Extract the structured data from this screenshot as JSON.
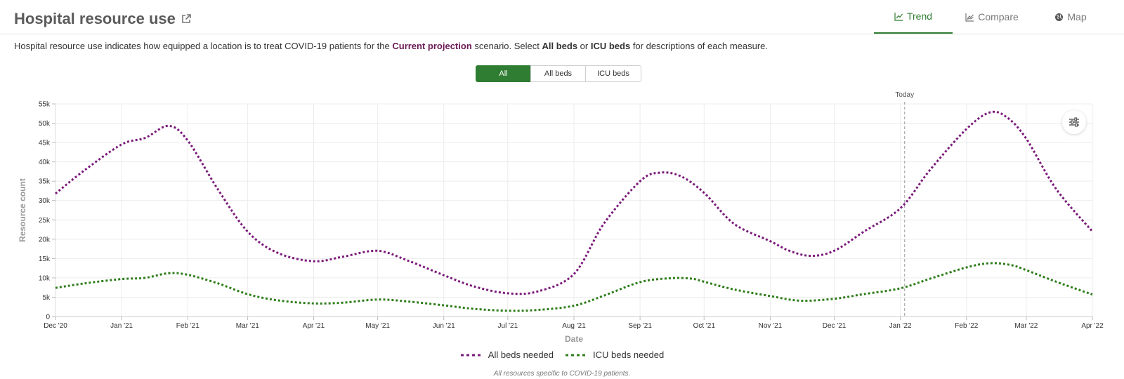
{
  "header": {
    "title": "Hospital resource use",
    "tabs": [
      {
        "label": "Trend",
        "icon": "line-chart-icon",
        "active": true
      },
      {
        "label": "Compare",
        "icon": "compare-chart-icon",
        "active": false
      },
      {
        "label": "Map",
        "icon": "globe-icon",
        "active": false
      }
    ]
  },
  "description": {
    "part1": "Hospital resource use indicates how equipped a location is to treat COVID-19 patients for the ",
    "scenario": "Current projection",
    "part2": " scenario. Select ",
    "all_beds": "All beds",
    "part3": " or ",
    "icu_beds": "ICU beds",
    "part4": " for descriptions of each measure."
  },
  "filters": [
    "All",
    "All beds",
    "ICU beds"
  ],
  "colors": {
    "accent": "#2f7d32",
    "all_beds": "#7a1a7a",
    "icu_beds": "#2e7d1a",
    "scenario": "#6b1a55"
  },
  "settings_icon": "sliders-icon",
  "footnote": "All resources specific to COVID-19 patients.",
  "chart_data": {
    "type": "line",
    "x_ticks": [
      "Dec '20",
      "Jan '21",
      "Feb '21",
      "Mar '21",
      "Apr '21",
      "May '21",
      "Jun '21",
      "Jul '21",
      "Aug '21",
      "Sep '21",
      "Oct '21",
      "Nov '21",
      "Dec '21",
      "Jan '22",
      "Feb '22",
      "Mar '22",
      "Apr '22"
    ],
    "y_ticks": [
      "0",
      "5k",
      "10k",
      "15k",
      "20k",
      "25k",
      "30k",
      "35k",
      "40k",
      "45k",
      "50k",
      "55k"
    ],
    "xlabel": "Date",
    "ylabel": "Resource count",
    "ylim": [
      0,
      55000
    ],
    "xlim": [
      "2020-12-01",
      "2022-04-01"
    ],
    "today_label": "Today",
    "today_date": "2022-01-03",
    "series": [
      {
        "name": "All beds needed",
        "color": "#7a1a7a",
        "points": [
          [
            "2020-12-01",
            31800
          ],
          [
            "2020-12-15",
            38000
          ],
          [
            "2021-01-01",
            44500
          ],
          [
            "2021-01-12",
            46200
          ],
          [
            "2021-01-23",
            49300
          ],
          [
            "2021-02-01",
            45500
          ],
          [
            "2021-02-15",
            33000
          ],
          [
            "2021-03-01",
            22000
          ],
          [
            "2021-03-15",
            16500
          ],
          [
            "2021-04-01",
            14300
          ],
          [
            "2021-04-15",
            15500
          ],
          [
            "2021-05-01",
            17000
          ],
          [
            "2021-05-15",
            14500
          ],
          [
            "2021-06-01",
            10700
          ],
          [
            "2021-06-15",
            7800
          ],
          [
            "2021-07-01",
            6000
          ],
          [
            "2021-07-15",
            6500
          ],
          [
            "2021-08-01",
            11000
          ],
          [
            "2021-08-15",
            24000
          ],
          [
            "2021-09-01",
            35000
          ],
          [
            "2021-09-10",
            37200
          ],
          [
            "2021-09-20",
            36300
          ],
          [
            "2021-10-01",
            32000
          ],
          [
            "2021-10-15",
            24000
          ],
          [
            "2021-11-01",
            19500
          ],
          [
            "2021-11-10",
            17000
          ],
          [
            "2021-11-20",
            15700
          ],
          [
            "2021-12-01",
            17000
          ],
          [
            "2021-12-15",
            22000
          ],
          [
            "2022-01-01",
            28000
          ],
          [
            "2022-01-15",
            38000
          ],
          [
            "2022-02-01",
            48500
          ],
          [
            "2022-02-12",
            52800
          ],
          [
            "2022-02-20",
            51500
          ],
          [
            "2022-03-01",
            46000
          ],
          [
            "2022-03-15",
            33000
          ],
          [
            "2022-04-01",
            22000
          ]
        ]
      },
      {
        "name": "ICU beds needed",
        "color": "#2e7d1a",
        "points": [
          [
            "2020-12-01",
            7400
          ],
          [
            "2020-12-15",
            8600
          ],
          [
            "2021-01-01",
            9700
          ],
          [
            "2021-01-12",
            10000
          ],
          [
            "2021-01-23",
            11200
          ],
          [
            "2021-02-01",
            10800
          ],
          [
            "2021-02-15",
            8600
          ],
          [
            "2021-03-01",
            5800
          ],
          [
            "2021-03-15",
            4200
          ],
          [
            "2021-04-01",
            3400
          ],
          [
            "2021-04-15",
            3600
          ],
          [
            "2021-05-01",
            4400
          ],
          [
            "2021-05-15",
            3900
          ],
          [
            "2021-06-01",
            2900
          ],
          [
            "2021-06-15",
            2000
          ],
          [
            "2021-07-01",
            1500
          ],
          [
            "2021-07-15",
            1700
          ],
          [
            "2021-08-01",
            2800
          ],
          [
            "2021-08-15",
            5400
          ],
          [
            "2021-09-01",
            8900
          ],
          [
            "2021-09-15",
            9900
          ],
          [
            "2021-09-25",
            9800
          ],
          [
            "2021-10-01",
            9000
          ],
          [
            "2021-10-15",
            7000
          ],
          [
            "2021-11-01",
            5300
          ],
          [
            "2021-11-15",
            4100
          ],
          [
            "2021-12-01",
            4600
          ],
          [
            "2021-12-15",
            5800
          ],
          [
            "2022-01-01",
            7300
          ],
          [
            "2022-01-15",
            9800
          ],
          [
            "2022-02-01",
            12700
          ],
          [
            "2022-02-12",
            13800
          ],
          [
            "2022-02-22",
            13300
          ],
          [
            "2022-03-01",
            12000
          ],
          [
            "2022-03-15",
            9000
          ],
          [
            "2022-04-01",
            5700
          ]
        ]
      }
    ],
    "grid": true,
    "legend_position": "bottom"
  }
}
